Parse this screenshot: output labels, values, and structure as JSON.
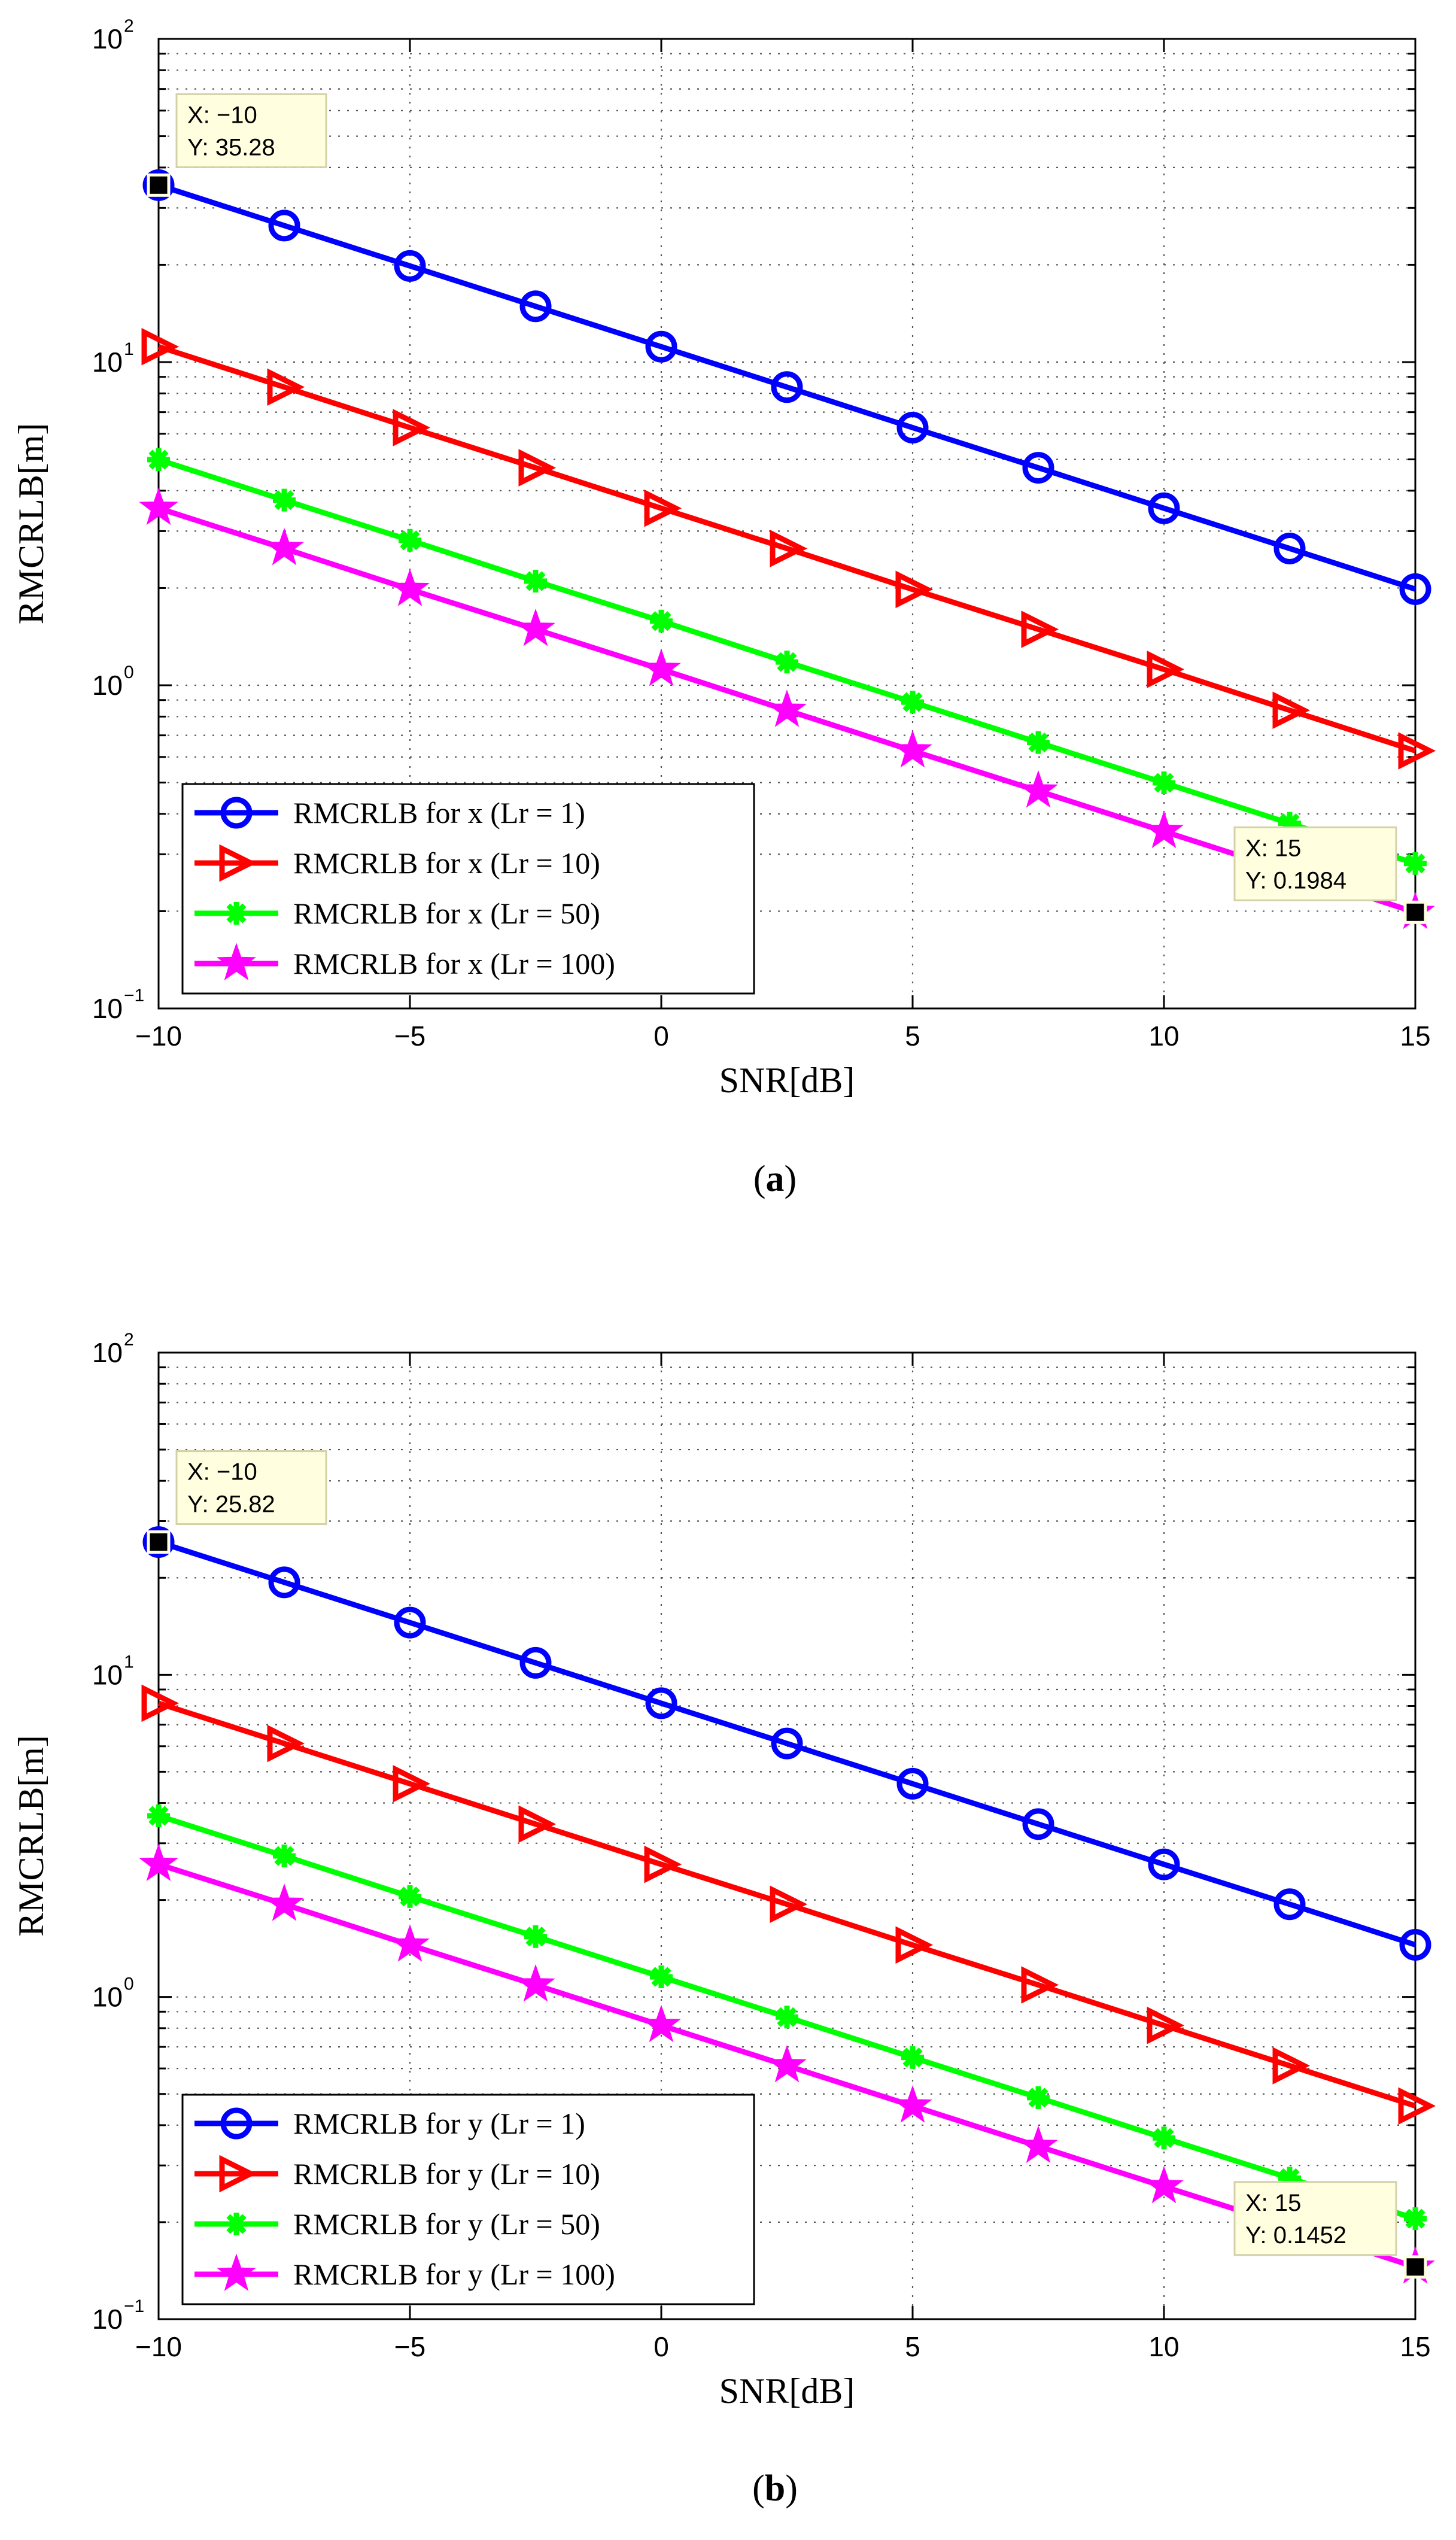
{
  "chart_data": [
    {
      "type": "line",
      "caption_letter": "a",
      "xlabel": "SNR[dB]",
      "ylabel": "RMCRLB[m]",
      "xlim": [
        -10,
        15
      ],
      "ylim": [
        0.1,
        100
      ],
      "yscale": "log",
      "x_ticks": [
        -10,
        -5,
        0,
        5,
        10,
        15
      ],
      "x_tick_labels": [
        "−10",
        "−5",
        "0",
        "5",
        "10",
        "15"
      ],
      "y_ticks": [
        0.1,
        1,
        10,
        100
      ],
      "y_tick_bases": [
        "10",
        "10",
        "10",
        "10"
      ],
      "y_tick_exponents": [
        "−1",
        "0",
        "1",
        "2"
      ],
      "grid": true,
      "legend_position": "bottom-left",
      "x": [
        -10,
        -7.5,
        -5,
        -2.5,
        0,
        2.5,
        5,
        7.5,
        10,
        12.5,
        15
      ],
      "series": [
        {
          "name": "RMCRLB for x (Lr = 1)",
          "color": "#0000ff",
          "marker": "circle",
          "values": [
            35.28,
            26.45,
            19.84,
            14.88,
            11.16,
            8.37,
            6.27,
            4.71,
            3.53,
            2.65,
            1.984
          ]
        },
        {
          "name": "RMCRLB for x (Lr = 10)",
          "color": "#ff0000",
          "marker": "triangle-right",
          "values": [
            11.16,
            8.37,
            6.27,
            4.71,
            3.53,
            2.65,
            1.98,
            1.49,
            1.12,
            0.837,
            0.627
          ]
        },
        {
          "name": "RMCRLB for x (Lr = 50)",
          "color": "#00ff00",
          "marker": "asterisk",
          "values": [
            4.99,
            3.74,
            2.81,
            2.1,
            1.58,
            1.18,
            0.887,
            0.665,
            0.499,
            0.374,
            0.281
          ]
        },
        {
          "name": "RMCRLB for x (Lr = 100)",
          "color": "#ff00ff",
          "marker": "star",
          "values": [
            3.53,
            2.65,
            1.98,
            1.49,
            1.12,
            0.837,
            0.627,
            0.471,
            0.353,
            0.265,
            0.1984
          ]
        }
      ],
      "datatips": [
        {
          "x_text": "X: −10",
          "y_text": "Y: 35.28",
          "x": -10,
          "y": 35.28,
          "side": "above-right"
        },
        {
          "x_text": "X: 15",
          "y_text": "Y: 0.1984",
          "x": 15,
          "y": 0.1984,
          "side": "above-left"
        }
      ]
    },
    {
      "type": "line",
      "caption_letter": "b",
      "xlabel": "SNR[dB]",
      "ylabel": "RMCRLB[m]",
      "xlim": [
        -10,
        15
      ],
      "ylim": [
        0.1,
        100
      ],
      "yscale": "log",
      "x_ticks": [
        -10,
        -5,
        0,
        5,
        10,
        15
      ],
      "x_tick_labels": [
        "−10",
        "−5",
        "0",
        "5",
        "10",
        "15"
      ],
      "y_ticks": [
        0.1,
        1,
        10,
        100
      ],
      "y_tick_bases": [
        "10",
        "10",
        "10",
        "10"
      ],
      "y_tick_exponents": [
        "−1",
        "0",
        "1",
        "2"
      ],
      "grid": true,
      "legend_position": "bottom-left",
      "x": [
        -10,
        -7.5,
        -5,
        -2.5,
        0,
        2.5,
        5,
        7.5,
        10,
        12.5,
        15
      ],
      "series": [
        {
          "name": "RMCRLB for y (Lr = 1)",
          "color": "#0000ff",
          "marker": "circle",
          "values": [
            25.82,
            19.36,
            14.52,
            10.89,
            8.16,
            6.12,
            4.59,
            3.44,
            2.58,
            1.94,
            1.452
          ]
        },
        {
          "name": "RMCRLB for y (Lr = 10)",
          "color": "#ff0000",
          "marker": "triangle-right",
          "values": [
            8.16,
            6.12,
            4.59,
            3.44,
            2.58,
            1.94,
            1.45,
            1.09,
            0.816,
            0.612,
            0.459
          ]
        },
        {
          "name": "RMCRLB for y (Lr = 50)",
          "color": "#00ff00",
          "marker": "asterisk",
          "values": [
            3.65,
            2.74,
            2.05,
            1.54,
            1.155,
            0.866,
            0.649,
            0.487,
            0.365,
            0.274,
            0.205
          ]
        },
        {
          "name": "RMCRLB for y (Lr = 100)",
          "color": "#ff00ff",
          "marker": "star",
          "values": [
            2.58,
            1.94,
            1.45,
            1.09,
            0.816,
            0.612,
            0.459,
            0.344,
            0.258,
            0.194,
            0.1452
          ]
        }
      ],
      "datatips": [
        {
          "x_text": "X: −10",
          "y_text": "Y: 25.82",
          "x": -10,
          "y": 25.82,
          "side": "above-right"
        },
        {
          "x_text": "X: 15",
          "y_text": "Y: 0.1452",
          "x": 15,
          "y": 0.1452,
          "side": "above-left"
        }
      ]
    }
  ]
}
